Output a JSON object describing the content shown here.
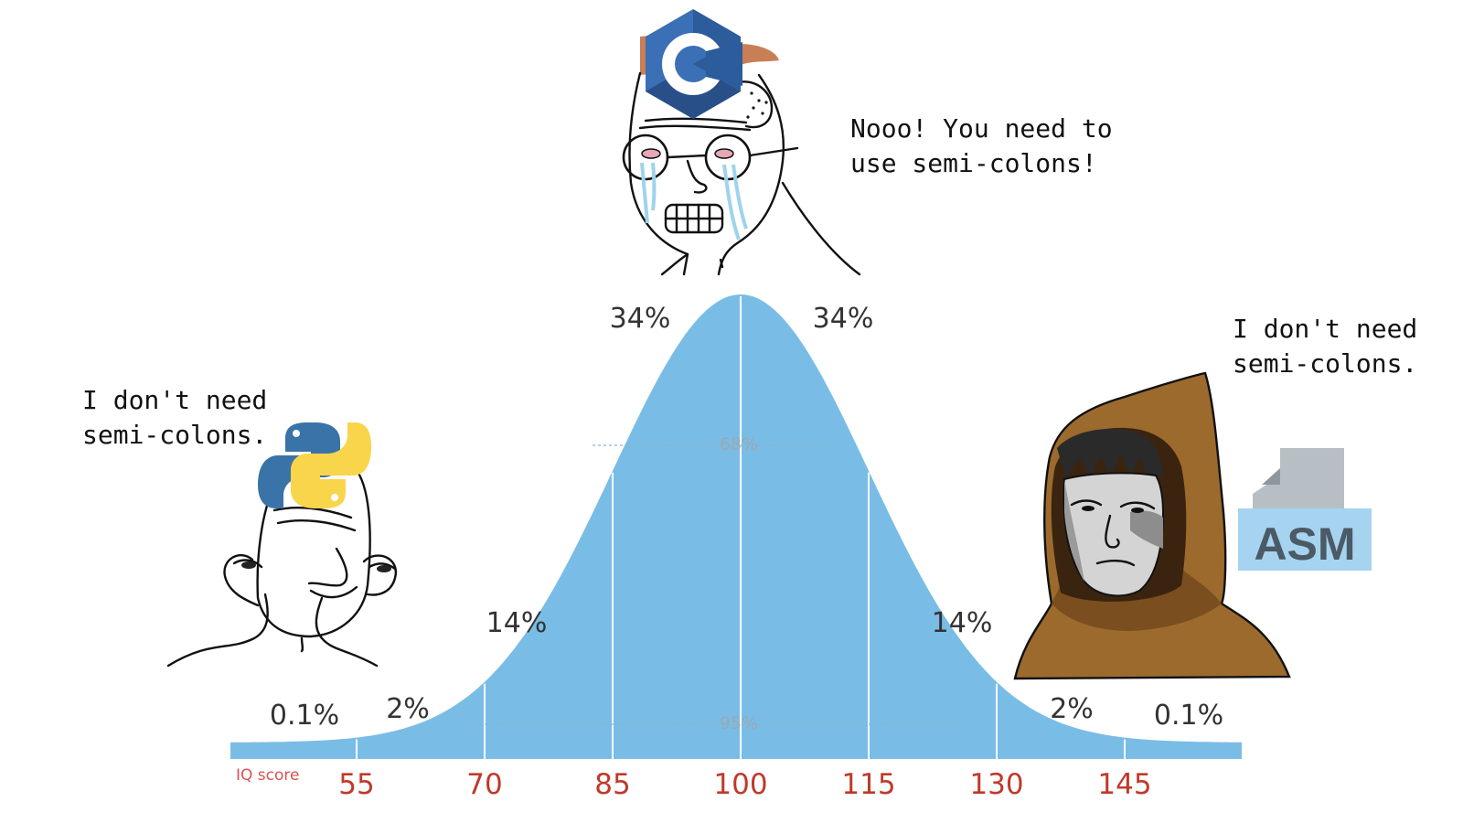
{
  "meme": {
    "left_caption": [
      "I don't need",
      "semi-colons."
    ],
    "middle_caption": [
      "Nooo! You need to",
      "use semi-colons!"
    ],
    "right_caption": [
      "I don't need",
      "semi-colons."
    ],
    "asm_logo_text": "ASM"
  },
  "chart_data": {
    "type": "area",
    "title": "",
    "xlabel": "IQ score",
    "ylabel": "",
    "x_ticks": [
      55,
      70,
      85,
      100,
      115,
      130,
      145
    ],
    "x_tick_labels": [
      "55",
      "70",
      "85",
      "100",
      "115",
      "130",
      "145"
    ],
    "mean": 100,
    "std": 15,
    "band_labels": [
      "0.1%",
      "2%",
      "14%",
      "34%",
      "34%",
      "14%",
      "2%",
      "0.1%"
    ],
    "range_labels": [
      "68%",
      "95%"
    ],
    "colors": {
      "fill": "#79bde6",
      "divider": "#ffffff",
      "tick_text": "#c0392b"
    }
  }
}
